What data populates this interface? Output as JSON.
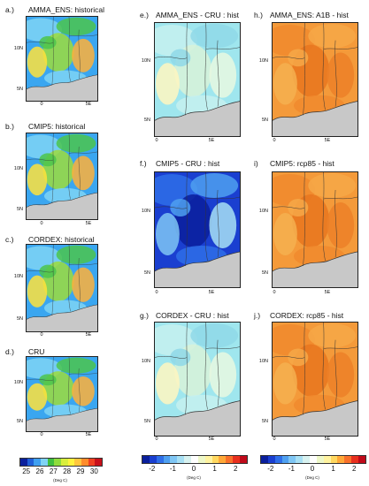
{
  "panels": [
    {
      "id": "a",
      "label": "a.)",
      "title": "AMMA_ENS: historical",
      "scheme": "abs",
      "lat": [
        "10N",
        "5N"
      ],
      "lon": [
        "0",
        "5E"
      ]
    },
    {
      "id": "b",
      "label": "b.)",
      "title": "CMIP5: historical",
      "scheme": "abs",
      "lat": [
        "10N",
        "5N"
      ],
      "lon": [
        "0",
        "5E"
      ]
    },
    {
      "id": "c",
      "label": "c.)",
      "title": "CORDEX: historical",
      "scheme": "abs",
      "lat": [
        "10N",
        "5N"
      ],
      "lon": [
        "0",
        "5E"
      ]
    },
    {
      "id": "d",
      "label": "d.)",
      "title": "CRU",
      "scheme": "abs",
      "lat": [
        "10N",
        "5N"
      ],
      "lon": [
        "0",
        "5E"
      ]
    },
    {
      "id": "e",
      "label": "e.)",
      "title": "AMMA_ENS - CRU : hist",
      "scheme": "bias",
      "lat": [
        "10N",
        "5N"
      ],
      "lon": [
        "0",
        "5E"
      ]
    },
    {
      "id": "f",
      "label": "f.)",
      "title": "CMIP5 - CRU : hist",
      "scheme": "biasneg",
      "lat": [
        "10N",
        "5N"
      ],
      "lon": [
        "0",
        "5E"
      ]
    },
    {
      "id": "g",
      "label": "g.)",
      "title": "CORDEX - CRU : hist",
      "scheme": "bias",
      "lat": [
        "10N",
        "5N"
      ],
      "lon": [
        "0",
        "5E"
      ]
    },
    {
      "id": "h",
      "label": "h.)",
      "title": "AMMA_ENS: A1B - hist",
      "scheme": "warm",
      "lat": [
        "10N",
        "5N"
      ],
      "lon": [
        "0",
        "5E"
      ]
    },
    {
      "id": "i",
      "label": "i)",
      "title": "CMIP5: rcp85 - hist",
      "scheme": "warm",
      "lat": [
        "10N",
        "5N"
      ],
      "lon": [
        "0",
        "5E"
      ]
    },
    {
      "id": "j",
      "label": "j.)",
      "title": "CORDEX: rcp85 - hist",
      "scheme": "warm",
      "lat": [
        "10N",
        "5N"
      ],
      "lon": [
        "0",
        "5E"
      ]
    }
  ],
  "colorbars": [
    {
      "id": "abs",
      "ticks": [
        "25",
        "26",
        "27",
        "28",
        "29",
        "30"
      ],
      "unit": "(Deg C)",
      "colors": [
        "#0a1f9c",
        "#1f5fd8",
        "#3fa0f0",
        "#7fd3f5",
        "#3fbf3f",
        "#8fdc3c",
        "#d8ee3c",
        "#fff23c",
        "#ffc63c",
        "#ff8c2a",
        "#f04020",
        "#c8101a"
      ]
    },
    {
      "id": "diff1",
      "ticks": [
        "-2",
        "-1",
        "0",
        "1",
        "2"
      ],
      "unit": "(Deg C)",
      "colors": [
        "#0a1f9c",
        "#1a3fd0",
        "#2f6fe8",
        "#4fa0f0",
        "#7fc6f4",
        "#a8e0f4",
        "#d8f2f0",
        "#ffffff",
        "#eef8c8",
        "#fff3a0",
        "#ffd860",
        "#ffa838",
        "#f8702a",
        "#e8301e",
        "#c00a1a"
      ]
    },
    {
      "id": "diff2",
      "ticks": [
        "-2",
        "-1",
        "0",
        "1",
        "2"
      ],
      "unit": "(Deg C)",
      "colors": [
        "#0a1f9c",
        "#1a3fd0",
        "#2f6fe8",
        "#4fa0f0",
        "#7fc6f4",
        "#a8e0f4",
        "#d8f2f0",
        "#ffffff",
        "#eef8c8",
        "#fff3a0",
        "#ffd860",
        "#ffa838",
        "#f8702a",
        "#e8301e",
        "#c00a1a"
      ]
    }
  ],
  "palette": {
    "abs": [
      "#3aa6f0",
      "#7fd3f5",
      "#4cc44c",
      "#9edc3c",
      "#ffe23c",
      "#ffb03a"
    ],
    "bias": [
      "#9fe6ee",
      "#c6f0ee",
      "#8fd8e8",
      "#d8f2d8",
      "#fff6c0",
      "#e8f8e0"
    ],
    "biasneg": [
      "#1a3fd0",
      "#2f6fe8",
      "#4fa0f0",
      "#0a1f9c",
      "#7fc6f4",
      "#a8e0f4"
    ],
    "warm": [
      "#f49a3a",
      "#f08a2e",
      "#f6a848",
      "#e8761e",
      "#f5b050",
      "#ec8028"
    ]
  }
}
